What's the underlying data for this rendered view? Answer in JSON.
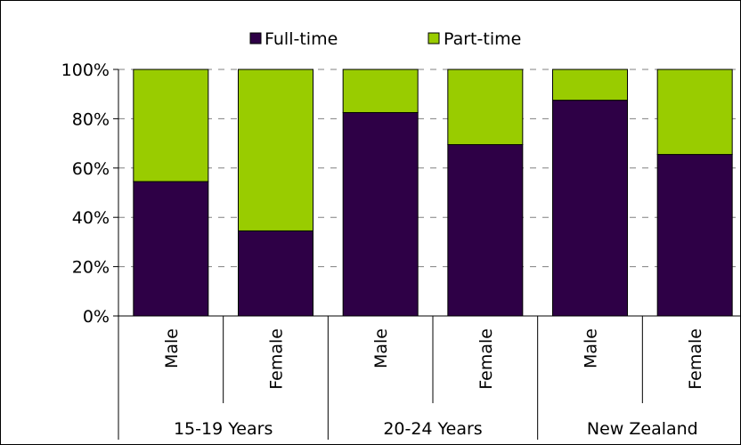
{
  "chart_data": {
    "type": "bar",
    "stacked": true,
    "percent_stacked": true,
    "categories": [
      "Male",
      "Female",
      "Male",
      "Female",
      "Male",
      "Female"
    ],
    "groups": [
      {
        "label": "15-19 Years",
        "span": [
          0,
          1
        ]
      },
      {
        "label": "20-24 Years",
        "span": [
          2,
          3
        ]
      },
      {
        "label": "New Zealand",
        "span": [
          4,
          5
        ]
      }
    ],
    "series": [
      {
        "name": "Full-time",
        "color": "#2e0046",
        "values": [
          54.5,
          34.5,
          82.5,
          69.5,
          87.5,
          65.5
        ]
      },
      {
        "name": "Part-time",
        "color": "#99cc00",
        "values": [
          45.5,
          65.5,
          17.5,
          30.5,
          12.5,
          34.5
        ]
      }
    ],
    "ylim": [
      0,
      100
    ],
    "yticks": [
      "0%",
      "20%",
      "40%",
      "60%",
      "80%",
      "100%"
    ],
    "grid": true,
    "legend_position": "top"
  }
}
